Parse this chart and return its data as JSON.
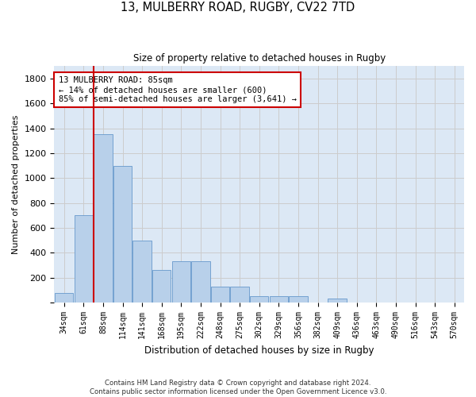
{
  "title1": "13, MULBERRY ROAD, RUGBY, CV22 7TD",
  "title2": "Size of property relative to detached houses in Rugby",
  "xlabel": "Distribution of detached houses by size in Rugby",
  "ylabel": "Number of detached properties",
  "categories": [
    "34sqm",
    "61sqm",
    "88sqm",
    "114sqm",
    "141sqm",
    "168sqm",
    "195sqm",
    "222sqm",
    "248sqm",
    "275sqm",
    "302sqm",
    "329sqm",
    "356sqm",
    "382sqm",
    "409sqm",
    "436sqm",
    "463sqm",
    "490sqm",
    "516sqm",
    "543sqm",
    "570sqm"
  ],
  "values": [
    75,
    700,
    1350,
    1100,
    500,
    260,
    330,
    330,
    130,
    130,
    55,
    55,
    55,
    0,
    30,
    0,
    0,
    0,
    0,
    0,
    0
  ],
  "bar_color": "#b8d0ea",
  "bar_edge_color": "#6699cc",
  "grid_color": "#cccccc",
  "bg_color": "#dce8f5",
  "vline_color": "#cc0000",
  "annotation_text": "13 MULBERRY ROAD: 85sqm\n← 14% of detached houses are smaller (600)\n85% of semi-detached houses are larger (3,641) →",
  "annotation_box_color": "#cc0000",
  "footer1": "Contains HM Land Registry data © Crown copyright and database right 2024.",
  "footer2": "Contains public sector information licensed under the Open Government Licence v3.0.",
  "ylim": [
    0,
    1900
  ],
  "yticks": [
    0,
    200,
    400,
    600,
    800,
    1000,
    1200,
    1400,
    1600,
    1800
  ]
}
